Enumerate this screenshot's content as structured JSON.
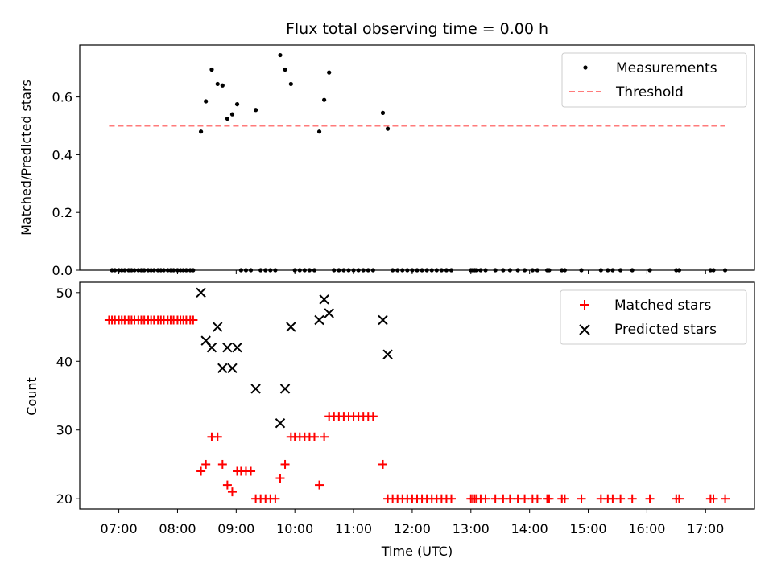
{
  "chart_data": [
    {
      "type": "scatter",
      "title": "Flux total observing time = 0.00 h",
      "xlabel": "",
      "ylabel": "Matched/Predicted stars",
      "ylim": [
        0,
        0.78
      ],
      "yticks": [
        "0.0",
        "0.2",
        "0.4",
        "0.6"
      ],
      "ytick_values": [
        0,
        0.2,
        0.4,
        0.6
      ],
      "legend": {
        "placement": "top-right",
        "entries": [
          "Measurements",
          "Threshold"
        ]
      },
      "colors": {
        "measurements": "#000000",
        "threshold": "#ff7b7b"
      },
      "threshold": {
        "value": 0.5,
        "x_start": "06:50",
        "x_end": "17:20"
      },
      "series": [
        {
          "name": "Measurements",
          "points": [
            [
              "06:53",
              0
            ],
            [
              "06:56",
              0
            ],
            [
              "07:00",
              0
            ],
            [
              "07:03",
              0
            ],
            [
              "07:06",
              0
            ],
            [
              "07:10",
              0
            ],
            [
              "07:13",
              0
            ],
            [
              "07:16",
              0
            ],
            [
              "07:20",
              0
            ],
            [
              "07:23",
              0
            ],
            [
              "07:26",
              0
            ],
            [
              "07:30",
              0
            ],
            [
              "07:33",
              0
            ],
            [
              "07:36",
              0
            ],
            [
              "07:40",
              0
            ],
            [
              "07:43",
              0
            ],
            [
              "07:46",
              0
            ],
            [
              "07:50",
              0
            ],
            [
              "07:53",
              0
            ],
            [
              "07:56",
              0
            ],
            [
              "08:00",
              0
            ],
            [
              "08:03",
              0
            ],
            [
              "08:06",
              0
            ],
            [
              "08:09",
              0
            ],
            [
              "08:13",
              0
            ],
            [
              "08:16",
              0
            ],
            [
              "08:24",
              0.48
            ],
            [
              "08:29",
              0.585
            ],
            [
              "08:35",
              0.695
            ],
            [
              "08:41",
              0.645
            ],
            [
              "08:46",
              0.64
            ],
            [
              "08:51",
              0.525
            ],
            [
              "08:56",
              0.54
            ],
            [
              "09:01",
              0.575
            ],
            [
              "09:20",
              0.555
            ],
            [
              "09:45",
              0.745
            ],
            [
              "09:50",
              0.695
            ],
            [
              "09:56",
              0.645
            ],
            [
              "10:25",
              0.48
            ],
            [
              "10:30",
              0.59
            ],
            [
              "10:35",
              0.685
            ],
            [
              "11:30",
              0.545
            ],
            [
              "11:35",
              0.49
            ],
            [
              "09:05",
              0
            ],
            [
              "09:10",
              0
            ],
            [
              "09:15",
              0
            ],
            [
              "09:25",
              0
            ],
            [
              "09:30",
              0
            ],
            [
              "09:35",
              0
            ],
            [
              "09:40",
              0
            ],
            [
              "10:00",
              0
            ],
            [
              "10:05",
              0
            ],
            [
              "10:10",
              0
            ],
            [
              "10:15",
              0
            ],
            [
              "10:20",
              0
            ],
            [
              "10:40",
              0
            ],
            [
              "10:45",
              0
            ],
            [
              "10:50",
              0
            ],
            [
              "10:55",
              0
            ],
            [
              "11:00",
              0
            ],
            [
              "11:05",
              0
            ],
            [
              "11:10",
              0
            ],
            [
              "11:15",
              0
            ],
            [
              "11:20",
              0
            ],
            [
              "11:40",
              0
            ],
            [
              "11:45",
              0
            ],
            [
              "11:50",
              0
            ],
            [
              "11:55",
              0
            ],
            [
              "12:00",
              0
            ],
            [
              "12:05",
              0
            ],
            [
              "12:10",
              0
            ],
            [
              "12:15",
              0
            ],
            [
              "12:20",
              0
            ],
            [
              "12:25",
              0
            ],
            [
              "12:30",
              0
            ],
            [
              "12:35",
              0
            ],
            [
              "12:40",
              0
            ],
            [
              "13:00",
              0
            ],
            [
              "13:02",
              0
            ],
            [
              "13:04",
              0
            ],
            [
              "13:06",
              0
            ],
            [
              "13:10",
              0
            ],
            [
              "13:15",
              0
            ],
            [
              "13:25",
              0
            ],
            [
              "13:33",
              0
            ],
            [
              "13:40",
              0
            ],
            [
              "13:48",
              0
            ],
            [
              "13:55",
              0
            ],
            [
              "14:03",
              0
            ],
            [
              "14:08",
              0
            ],
            [
              "14:18",
              0
            ],
            [
              "14:20",
              0
            ],
            [
              "14:33",
              0
            ],
            [
              "14:36",
              0
            ],
            [
              "14:53",
              0
            ],
            [
              "15:13",
              0
            ],
            [
              "15:20",
              0
            ],
            [
              "15:25",
              0
            ],
            [
              "15:33",
              0
            ],
            [
              "15:45",
              0
            ],
            [
              "16:03",
              0
            ],
            [
              "16:30",
              0
            ],
            [
              "16:33",
              0
            ],
            [
              "17:05",
              0
            ],
            [
              "17:08",
              0
            ],
            [
              "17:20",
              0
            ]
          ]
        }
      ]
    },
    {
      "type": "scatter",
      "title": "",
      "xlabel": "Time (UTC)",
      "ylabel": "Count",
      "ylim": [
        18.5,
        51.5
      ],
      "yticks": [
        "20",
        "30",
        "40",
        "50"
      ],
      "ytick_values": [
        20,
        30,
        40,
        50
      ],
      "xlim": [
        "06:20",
        "17:50"
      ],
      "xticks": [
        "07:00",
        "08:00",
        "09:00",
        "10:00",
        "11:00",
        "12:00",
        "13:00",
        "14:00",
        "15:00",
        "16:00",
        "17:00"
      ],
      "legend": {
        "placement": "top-right",
        "entries": [
          "Matched stars",
          "Predicted stars"
        ]
      },
      "colors": {
        "matched": "#ff0000",
        "predicted": "#000000"
      },
      "series": [
        {
          "name": "Matched stars",
          "points": [
            [
              "06:50",
              46
            ],
            [
              "06:53",
              46
            ],
            [
              "06:56",
              46
            ],
            [
              "07:00",
              46
            ],
            [
              "07:03",
              46
            ],
            [
              "07:06",
              46
            ],
            [
              "07:10",
              46
            ],
            [
              "07:13",
              46
            ],
            [
              "07:16",
              46
            ],
            [
              "07:20",
              46
            ],
            [
              "07:23",
              46
            ],
            [
              "07:26",
              46
            ],
            [
              "07:30",
              46
            ],
            [
              "07:33",
              46
            ],
            [
              "07:36",
              46
            ],
            [
              "07:40",
              46
            ],
            [
              "07:43",
              46
            ],
            [
              "07:46",
              46
            ],
            [
              "07:50",
              46
            ],
            [
              "07:53",
              46
            ],
            [
              "07:56",
              46
            ],
            [
              "08:00",
              46
            ],
            [
              "08:03",
              46
            ],
            [
              "08:06",
              46
            ],
            [
              "08:09",
              46
            ],
            [
              "08:13",
              46
            ],
            [
              "08:16",
              46
            ],
            [
              "08:24",
              24
            ],
            [
              "08:29",
              25
            ],
            [
              "08:35",
              29
            ],
            [
              "08:41",
              29
            ],
            [
              "08:46",
              25
            ],
            [
              "08:51",
              22
            ],
            [
              "08:56",
              21
            ],
            [
              "09:01",
              24
            ],
            [
              "09:05",
              24
            ],
            [
              "09:10",
              24
            ],
            [
              "09:15",
              24
            ],
            [
              "09:20",
              20
            ],
            [
              "09:25",
              20
            ],
            [
              "09:30",
              20
            ],
            [
              "09:35",
              20
            ],
            [
              "09:40",
              20
            ],
            [
              "09:45",
              23
            ],
            [
              "09:50",
              25
            ],
            [
              "09:56",
              29
            ],
            [
              "10:00",
              29
            ],
            [
              "10:05",
              29
            ],
            [
              "10:10",
              29
            ],
            [
              "10:15",
              29
            ],
            [
              "10:20",
              29
            ],
            [
              "10:25",
              22
            ],
            [
              "10:30",
              29
            ],
            [
              "10:35",
              32
            ],
            [
              "10:40",
              32
            ],
            [
              "10:45",
              32
            ],
            [
              "10:50",
              32
            ],
            [
              "10:55",
              32
            ],
            [
              "11:00",
              32
            ],
            [
              "11:05",
              32
            ],
            [
              "11:10",
              32
            ],
            [
              "11:15",
              32
            ],
            [
              "11:20",
              32
            ],
            [
              "11:30",
              25
            ],
            [
              "11:35",
              20
            ],
            [
              "11:40",
              20
            ],
            [
              "11:45",
              20
            ],
            [
              "11:50",
              20
            ],
            [
              "11:55",
              20
            ],
            [
              "12:00",
              20
            ],
            [
              "12:05",
              20
            ],
            [
              "12:10",
              20
            ],
            [
              "12:15",
              20
            ],
            [
              "12:20",
              20
            ],
            [
              "12:25",
              20
            ],
            [
              "12:30",
              20
            ],
            [
              "12:35",
              20
            ],
            [
              "12:40",
              20
            ],
            [
              "13:00",
              20
            ],
            [
              "13:02",
              20
            ],
            [
              "13:04",
              20
            ],
            [
              "13:06",
              20
            ],
            [
              "13:10",
              20
            ],
            [
              "13:15",
              20
            ],
            [
              "13:25",
              20
            ],
            [
              "13:33",
              20
            ],
            [
              "13:40",
              20
            ],
            [
              "13:48",
              20
            ],
            [
              "13:55",
              20
            ],
            [
              "14:03",
              20
            ],
            [
              "14:08",
              20
            ],
            [
              "14:18",
              20
            ],
            [
              "14:20",
              20
            ],
            [
              "14:33",
              20
            ],
            [
              "14:36",
              20
            ],
            [
              "14:53",
              20
            ],
            [
              "15:13",
              20
            ],
            [
              "15:20",
              20
            ],
            [
              "15:25",
              20
            ],
            [
              "15:33",
              20
            ],
            [
              "15:45",
              20
            ],
            [
              "16:03",
              20
            ],
            [
              "16:30",
              20
            ],
            [
              "16:33",
              20
            ],
            [
              "17:05",
              20
            ],
            [
              "17:08",
              20
            ],
            [
              "17:20",
              20
            ]
          ]
        },
        {
          "name": "Predicted stars",
          "points": [
            [
              "08:24",
              50
            ],
            [
              "08:29",
              43
            ],
            [
              "08:35",
              42
            ],
            [
              "08:41",
              45
            ],
            [
              "08:46",
              39
            ],
            [
              "08:51",
              42
            ],
            [
              "08:56",
              39
            ],
            [
              "09:01",
              42
            ],
            [
              "09:20",
              36
            ],
            [
              "09:45",
              31
            ],
            [
              "09:50",
              36
            ],
            [
              "09:56",
              45
            ],
            [
              "10:25",
              46
            ],
            [
              "10:30",
              49
            ],
            [
              "10:35",
              47
            ],
            [
              "11:30",
              46
            ],
            [
              "11:35",
              41
            ]
          ]
        }
      ]
    }
  ]
}
